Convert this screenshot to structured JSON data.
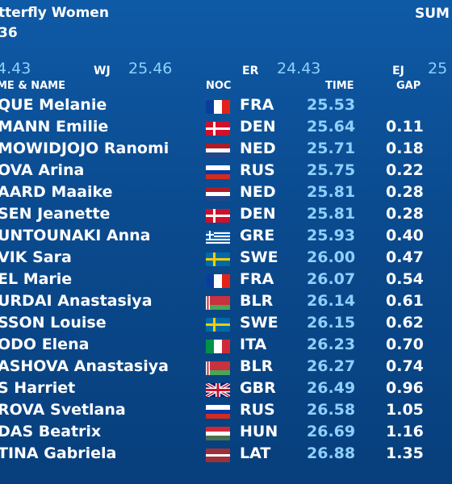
{
  "header": {
    "title": "tterfly Women",
    "subtitle": "36",
    "summary_label": "SUM"
  },
  "records": {
    "wr_value": "4.43",
    "wj_label": "WJ",
    "wj_value": "25.46",
    "er_label": "ER",
    "er_value": "24.43",
    "ej_label": "EJ",
    "ej_value": "25"
  },
  "columns": {
    "name": "ME & NAME",
    "noc": "NOC",
    "time": "TIME",
    "gap": "GAP"
  },
  "rows": [
    {
      "name": "QUE Melanie",
      "flag": "FRA",
      "noc": "FRA",
      "time": "25.53",
      "gap": ""
    },
    {
      "name": "MANN Emilie",
      "flag": "DEN",
      "noc": "DEN",
      "time": "25.64",
      "gap": "0.11"
    },
    {
      "name": "MOWIDJOJO Ranomi",
      "flag": "NED",
      "noc": "NED",
      "time": "25.71",
      "gap": "0.18"
    },
    {
      "name": "OVA Arina",
      "flag": "RUS",
      "noc": "RUS",
      "time": "25.75",
      "gap": "0.22"
    },
    {
      "name": "AARD Maaike",
      "flag": "NED",
      "noc": "NED",
      "time": "25.81",
      "gap": "0.28"
    },
    {
      "name": "SEN Jeanette",
      "flag": "DEN",
      "noc": "DEN",
      "time": "25.81",
      "gap": "0.28"
    },
    {
      "name": "UNTOUNAKI Anna",
      "flag": "GRE",
      "noc": "GRE",
      "time": "25.93",
      "gap": "0.40"
    },
    {
      "name": "VIK Sara",
      "flag": "SWE",
      "noc": "SWE",
      "time": "26.00",
      "gap": "0.47"
    },
    {
      "name": "EL Marie",
      "flag": "FRA",
      "noc": "FRA",
      "time": "26.07",
      "gap": "0.54"
    },
    {
      "name": "URDAI Anastasiya",
      "flag": "BLR",
      "noc": "BLR",
      "time": "26.14",
      "gap": "0.61"
    },
    {
      "name": "SSON Louise",
      "flag": "SWE",
      "noc": "SWE",
      "time": "26.15",
      "gap": "0.62"
    },
    {
      "name": "ODO Elena",
      "flag": "ITA",
      "noc": "ITA",
      "time": "26.23",
      "gap": "0.70"
    },
    {
      "name": "ASHOVA Anastasiya",
      "flag": "BLR",
      "noc": "BLR",
      "time": "26.27",
      "gap": "0.74"
    },
    {
      "name": "S Harriet",
      "flag": "GBR",
      "noc": "GBR",
      "time": "26.49",
      "gap": "0.96"
    },
    {
      "name": "ROVA Svetlana",
      "flag": "RUS",
      "noc": "RUS",
      "time": "26.58",
      "gap": "1.05"
    },
    {
      "name": "DAS Beatrix",
      "flag": "HUN",
      "noc": "HUN",
      "time": "26.69",
      "gap": "1.16"
    },
    {
      "name": "TINA Gabriela",
      "flag": "LAT",
      "noc": "LAT",
      "time": "26.88",
      "gap": "1.35"
    }
  ],
  "colors": {
    "background": "#0a4a8e",
    "time_text": "#8fd0ff",
    "text": "#ffffff"
  }
}
